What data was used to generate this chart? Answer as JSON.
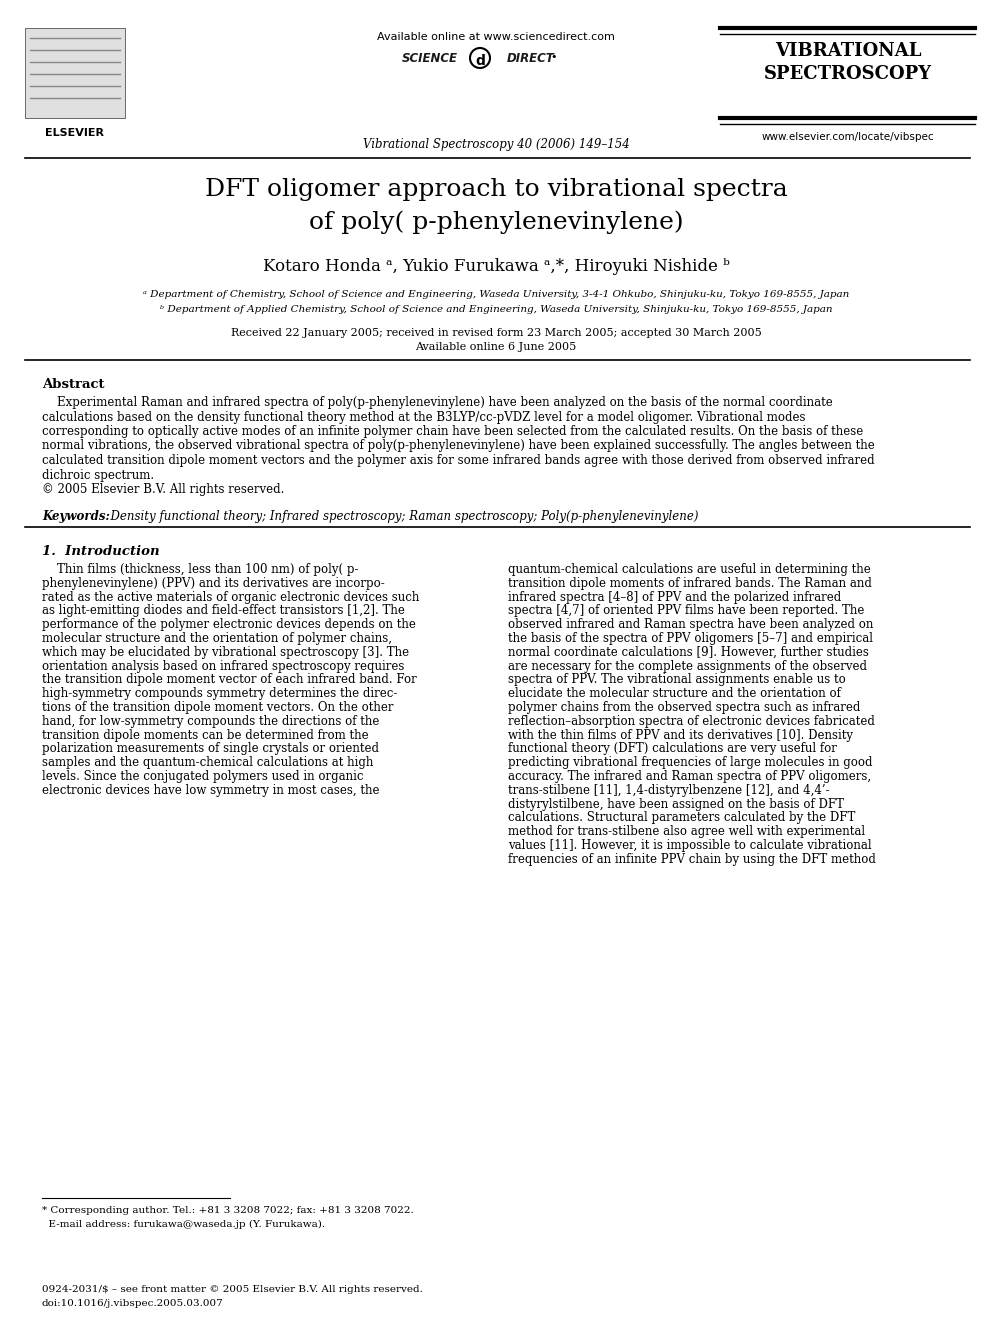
{
  "bg_color": "#ffffff",
  "header_available_online": "Available online at www.sciencedirect.com",
  "journal_name_center": "Vibrational Spectroscopy 40 (2006) 149–154",
  "journal_title_right": "VIBRATIONAL\nSPECTROSCOPY",
  "journal_url_right": "www.elsevier.com/locate/vibspec",
  "elsevier_text": "ELSEVIER",
  "paper_title_line1": "DFT oligomer approach to vibrational spectra",
  "paper_title_line2": "of poly( p-phenylenevinylene)",
  "authors": "Kotaro Honda ᵃ, Yukio Furukawa ᵃ,*, Hiroyuki Nishide ᵇ",
  "affil_a": "ᵃ Department of Chemistry, School of Science and Engineering, Waseda University, 3-4-1 Ohkubo, Shinjuku-ku, Tokyo 169-8555, Japan",
  "affil_b": "ᵇ Department of Applied Chemistry, School of Science and Engineering, Waseda University, Shinjuku-ku, Tokyo 169-8555, Japan",
  "received_line": "Received 22 January 2005; received in revised form 23 March 2005; accepted 30 March 2005",
  "available_online": "Available online 6 June 2005",
  "abstract_title": "Abstract",
  "keywords_label": "Keywords:",
  "keywords_text": "  Density functional theory; Infrared spectroscopy; Raman spectroscopy; Poly(p-phenylenevinylene)",
  "section1_title": "1.  Introduction",
  "footnote_line1": "* Corresponding author. Tel.: +81 3 3208 7022; fax: +81 3 3208 7022.",
  "footnote_line2": "  E-mail address: furukawa@waseda.jp (Y. Furukawa).",
  "footer_line1": "0924-2031/$ – see front matter © 2005 Elsevier B.V. All rights reserved.",
  "footer_line2": "doi:10.1016/j.vibspec.2005.03.007"
}
